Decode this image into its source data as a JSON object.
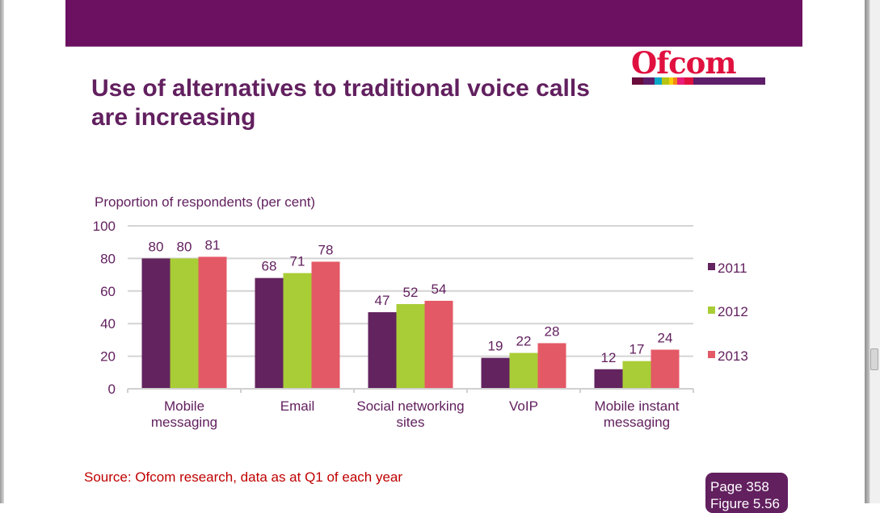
{
  "header": {
    "title_line1": "Use of alternatives to traditional voice calls",
    "title_line2": "are increasing",
    "logo_text": "Ofcom",
    "banner_color": "#6c1161",
    "logo_strip_colors": [
      "#6a0d3c",
      "#5e1e6a",
      "#0aa8c8",
      "#b8c414",
      "#f7d008",
      "#f48a12",
      "#e91e78",
      "#e0103f",
      "#5e1e6a"
    ]
  },
  "chart_data": {
    "type": "bar",
    "title": "",
    "ylabel": "Proportion of respondents (per cent)",
    "xlabel": "",
    "ylim": [
      0,
      100
    ],
    "yticks": [
      0,
      20,
      40,
      60,
      80,
      100
    ],
    "ytick_labels": [
      "0",
      "20",
      "40",
      "60",
      "80",
      "100"
    ],
    "grid": true,
    "legend_position": "right",
    "categories": [
      [
        "Mobile",
        "messaging"
      ],
      [
        "Email"
      ],
      [
        "Social networking",
        "sites"
      ],
      [
        "VoIP"
      ],
      [
        "Mobile instant",
        "messaging"
      ]
    ],
    "series": [
      {
        "name": "2011",
        "color": "#62235f",
        "values": [
          80,
          68,
          47,
          19,
          12
        ]
      },
      {
        "name": "2012",
        "color": "#a9cd36",
        "values": [
          80,
          71,
          52,
          22,
          17
        ]
      },
      {
        "name": "2013",
        "color": "#e45966",
        "values": [
          81,
          78,
          54,
          28,
          24
        ]
      }
    ],
    "data_labels": true
  },
  "footer": {
    "source": "Source: Ofcom research, data as at Q1 of each year",
    "page_label": "Page 358",
    "figure_label": "Figure 5.56"
  }
}
